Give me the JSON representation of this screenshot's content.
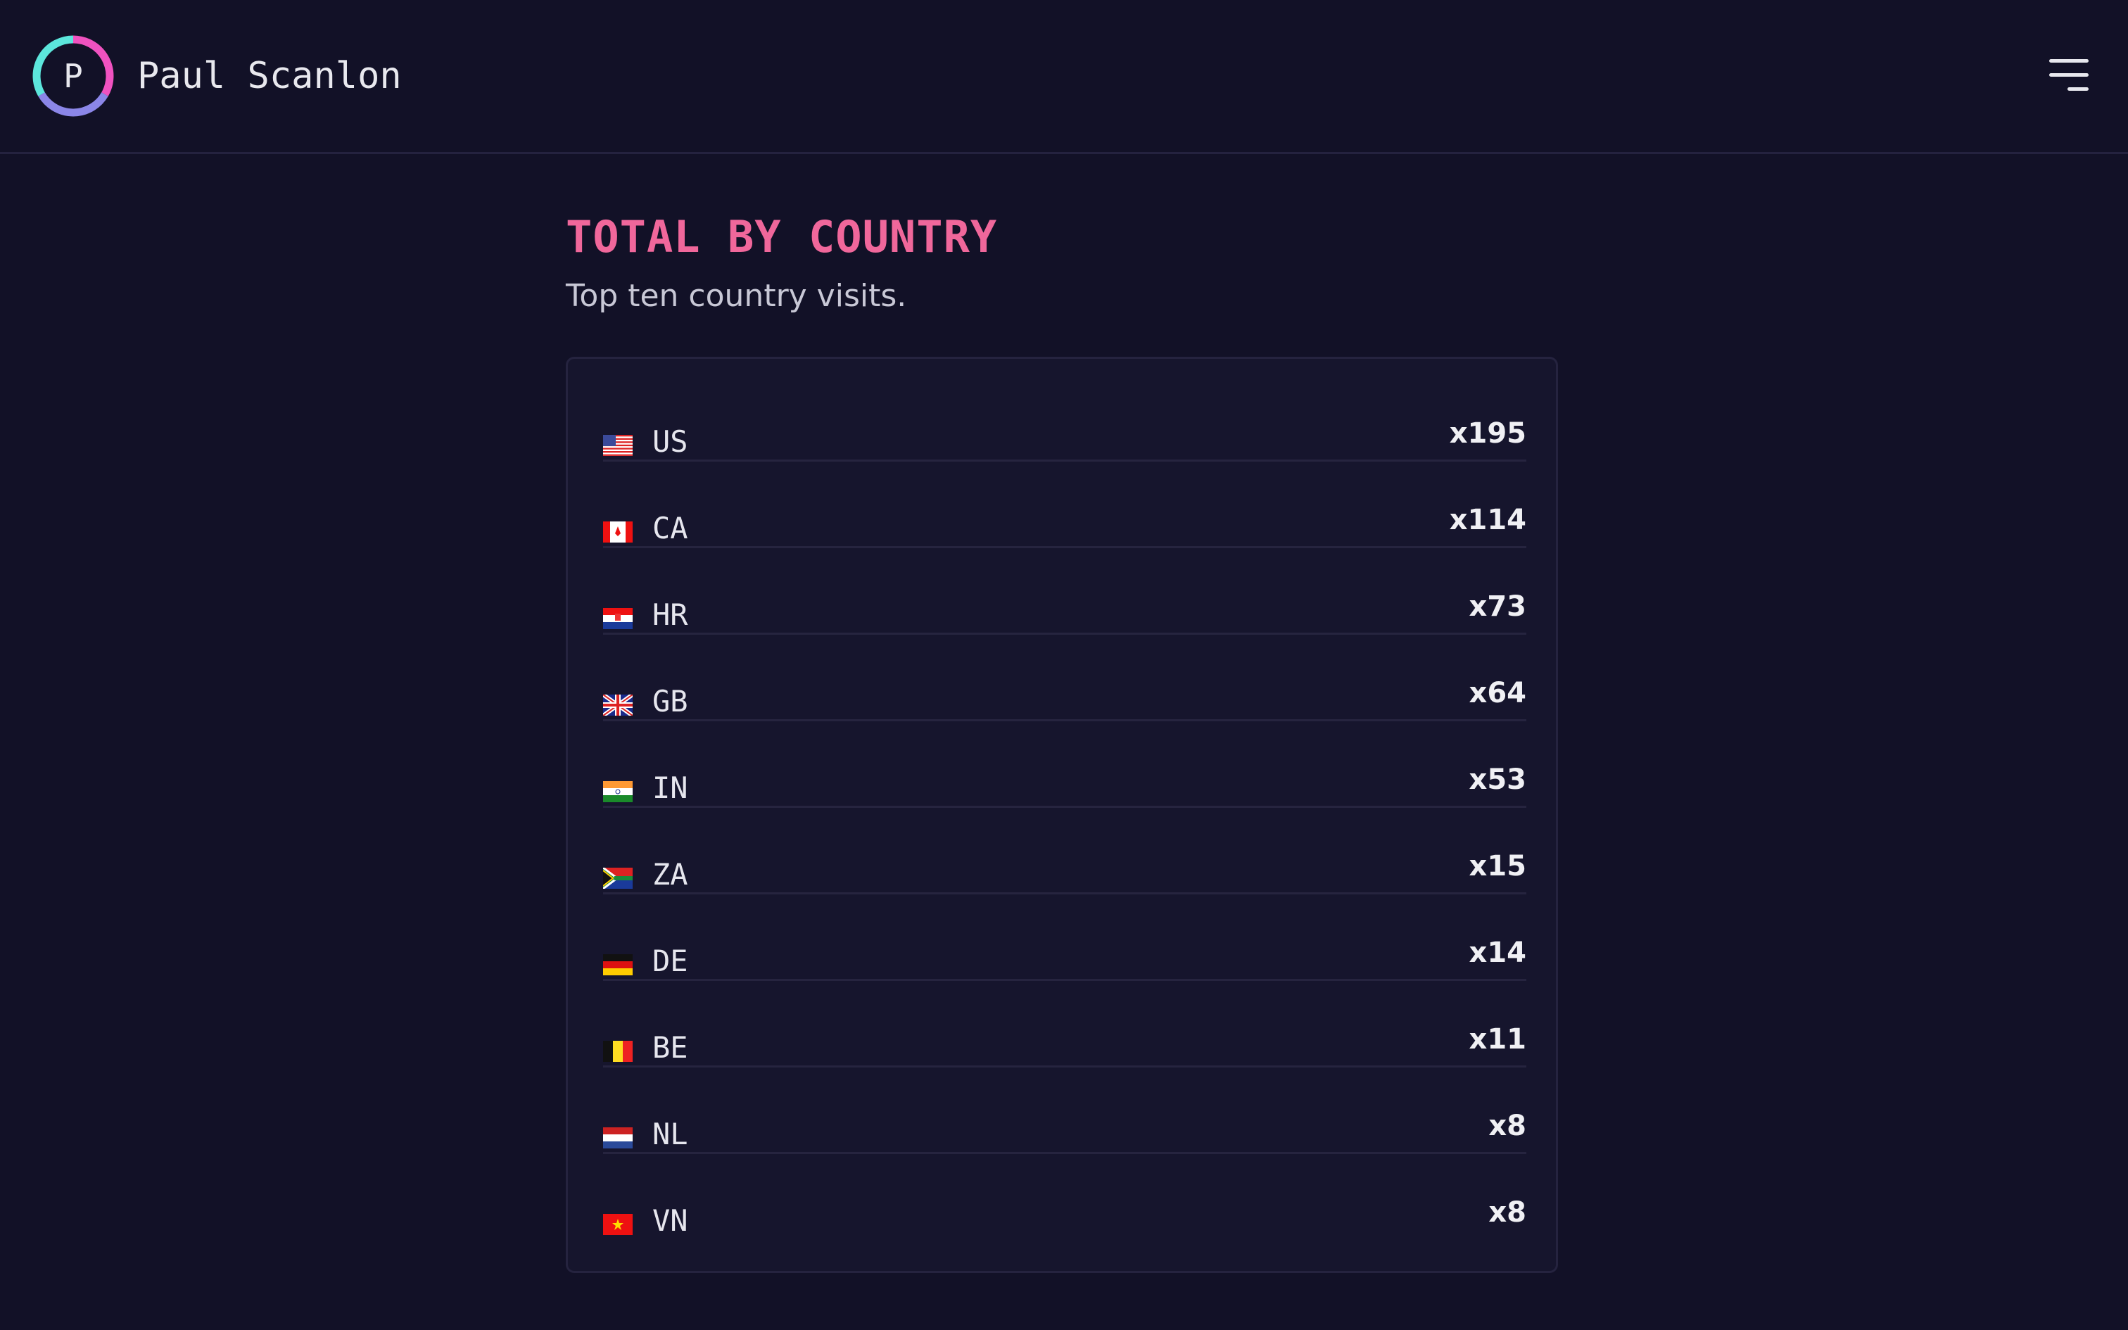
{
  "header": {
    "logo_letter": "P",
    "name": "Paul Scanlon",
    "menu_icon": "hamburger-menu-icon"
  },
  "main": {
    "title": "TOTAL BY COUNTRY",
    "subtitle": "Top ten country visits."
  },
  "countries": [
    {
      "code": "US",
      "count": "x195",
      "flag_icon": "flag-us-icon"
    },
    {
      "code": "CA",
      "count": "x114",
      "flag_icon": "flag-ca-icon"
    },
    {
      "code": "HR",
      "count": "x73",
      "flag_icon": "flag-hr-icon"
    },
    {
      "code": "GB",
      "count": "x64",
      "flag_icon": "flag-gb-icon"
    },
    {
      "code": "IN",
      "count": "x53",
      "flag_icon": "flag-in-icon"
    },
    {
      "code": "ZA",
      "count": "x15",
      "flag_icon": "flag-za-icon"
    },
    {
      "code": "DE",
      "count": "x14",
      "flag_icon": "flag-de-icon"
    },
    {
      "code": "BE",
      "count": "x11",
      "flag_icon": "flag-be-icon"
    },
    {
      "code": "NL",
      "count": "x8",
      "flag_icon": "flag-nl-icon"
    },
    {
      "code": "VN",
      "count": "x8",
      "flag_icon": "flag-vn-icon"
    }
  ],
  "colors": {
    "background": "#121127",
    "card": "#16152d",
    "accent_pink": "#f0679b",
    "logo_teal": "#5ce6dc",
    "logo_pink": "#f052c0",
    "logo_purple": "#8b86e8"
  }
}
